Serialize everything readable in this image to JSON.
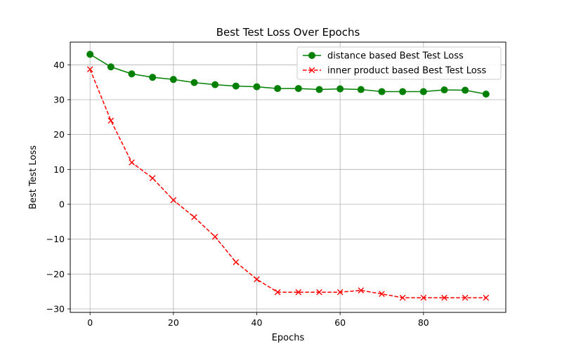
{
  "chart_data": {
    "type": "line",
    "title": "Best Test Loss Over Epochs",
    "xlabel": "Epochs",
    "ylabel": "Best Test Loss",
    "xlim": [
      -4.75,
      99.75
    ],
    "ylim": [
      -31,
      46.5
    ],
    "xticks": [
      0,
      20,
      40,
      60,
      80
    ],
    "yticks": [
      -30,
      -20,
      -10,
      0,
      10,
      20,
      30,
      40
    ],
    "grid": true,
    "legend_position": "top-right",
    "x": [
      0,
      5,
      10,
      15,
      20,
      25,
      30,
      35,
      40,
      45,
      50,
      55,
      60,
      65,
      70,
      75,
      80,
      85,
      90,
      95
    ],
    "series": [
      {
        "name": "distance based Best Test Loss",
        "color": "#008000",
        "line_style": "solid",
        "marker": "circle",
        "values": [
          43.0,
          39.4,
          37.4,
          36.4,
          35.8,
          34.9,
          34.3,
          33.9,
          33.7,
          33.2,
          33.2,
          32.9,
          33.1,
          32.9,
          32.3,
          32.3,
          32.3,
          32.8,
          32.7,
          31.6
        ]
      },
      {
        "name": "inner product based Best Test Loss",
        "color": "#ff0000",
        "line_style": "dashed",
        "marker": "x",
        "values": [
          38.7,
          24.0,
          12.0,
          7.5,
          1.2,
          -3.7,
          -9.3,
          -16.6,
          -21.5,
          -25.2,
          -25.2,
          -25.2,
          -25.2,
          -24.7,
          -25.7,
          -26.8,
          -26.8,
          -26.8,
          -26.8,
          -26.8
        ]
      }
    ]
  }
}
